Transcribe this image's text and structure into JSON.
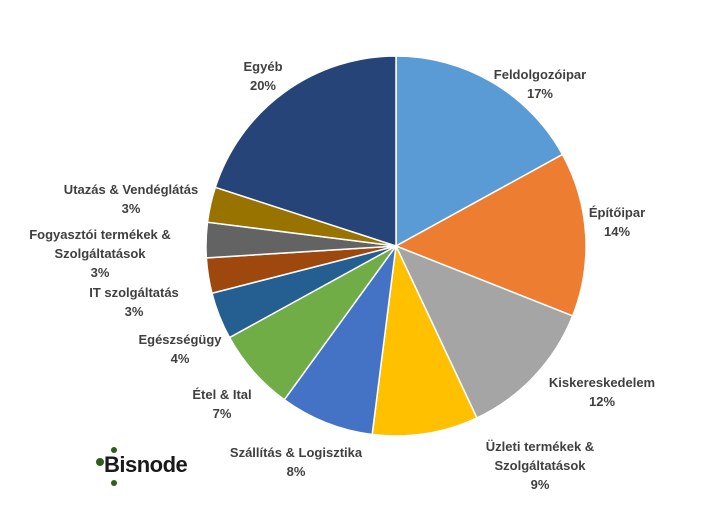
{
  "chart_data": {
    "type": "pie",
    "categories": [
      "Feldolgozóipar",
      "Építőipar",
      "Kiskereskedelem",
      "Üzleti termékek & Szolgáltatások",
      "Szállítás & Logisztika",
      "Étel & Ital",
      "Egészségügy",
      "IT szolgáltatás",
      "Fogyasztói termékek & Szolgáltatások",
      "Utazás & Vendéglátás",
      "Egyéb"
    ],
    "values": [
      17,
      14,
      12,
      9,
      8,
      7,
      4,
      3,
      3,
      3,
      20
    ],
    "value_labels": [
      "17%",
      "14%",
      "12%",
      "9%",
      "8%",
      "7%",
      "4%",
      "3%",
      "3%",
      "3%",
      "20%"
    ],
    "colors": [
      "#5b9bd5",
      "#ed7d31",
      "#a5a5a5",
      "#ffc000",
      "#4472c4",
      "#70ad47",
      "#255e91",
      "#9e480e",
      "#636363",
      "#997300",
      "#264478"
    ]
  },
  "logo": "Bisnode"
}
